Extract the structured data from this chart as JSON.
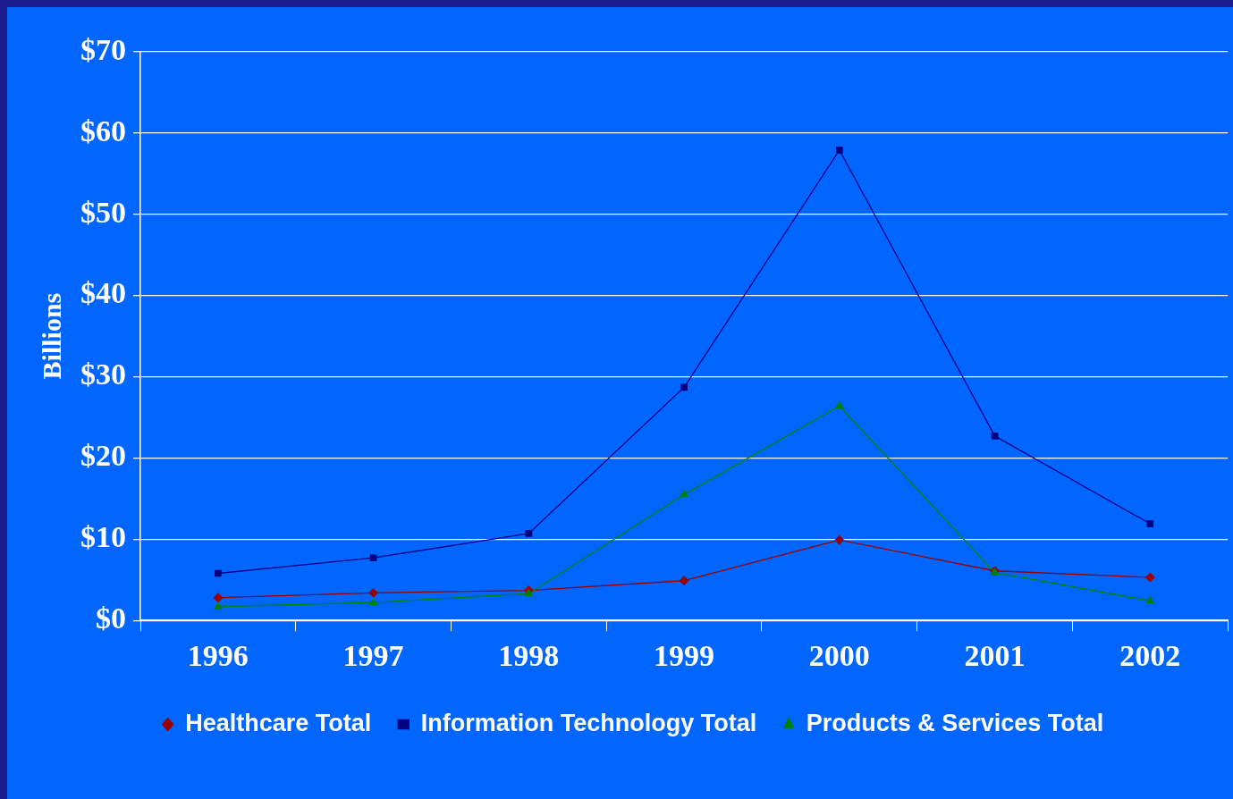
{
  "chart_data": {
    "type": "line",
    "ylabel": "Billions",
    "categories": [
      "1996",
      "1997",
      "1998",
      "1999",
      "2000",
      "2001",
      "2002"
    ],
    "series": [
      {
        "name": "Healthcare Total",
        "color": "#990000",
        "marker": "diamond",
        "values": [
          2.8,
          3.4,
          3.7,
          4.9,
          9.9,
          6.1,
          5.3
        ]
      },
      {
        "name": "Information Technology Total",
        "color": "#000080",
        "marker": "square",
        "values": [
          5.8,
          7.7,
          10.7,
          28.7,
          57.9,
          22.7,
          11.9
        ]
      },
      {
        "name": "Products & Services Total",
        "color": "#008000",
        "marker": "triangle",
        "values": [
          1.7,
          2.2,
          3.3,
          15.5,
          26.4,
          5.9,
          2.4
        ]
      }
    ],
    "ylim": [
      0,
      70
    ],
    "yticks": [
      {
        "value": 0,
        "label": "$0"
      },
      {
        "value": 10,
        "label": "$10"
      },
      {
        "value": 20,
        "label": "$20"
      },
      {
        "value": 30,
        "label": "$30"
      },
      {
        "value": 40,
        "label": "$40"
      },
      {
        "value": 50,
        "label": "$50"
      },
      {
        "value": 60,
        "label": "$60"
      },
      {
        "value": 70,
        "label": "$70"
      }
    ],
    "grid": "y",
    "legend": "bottom",
    "line_style": "solid"
  }
}
